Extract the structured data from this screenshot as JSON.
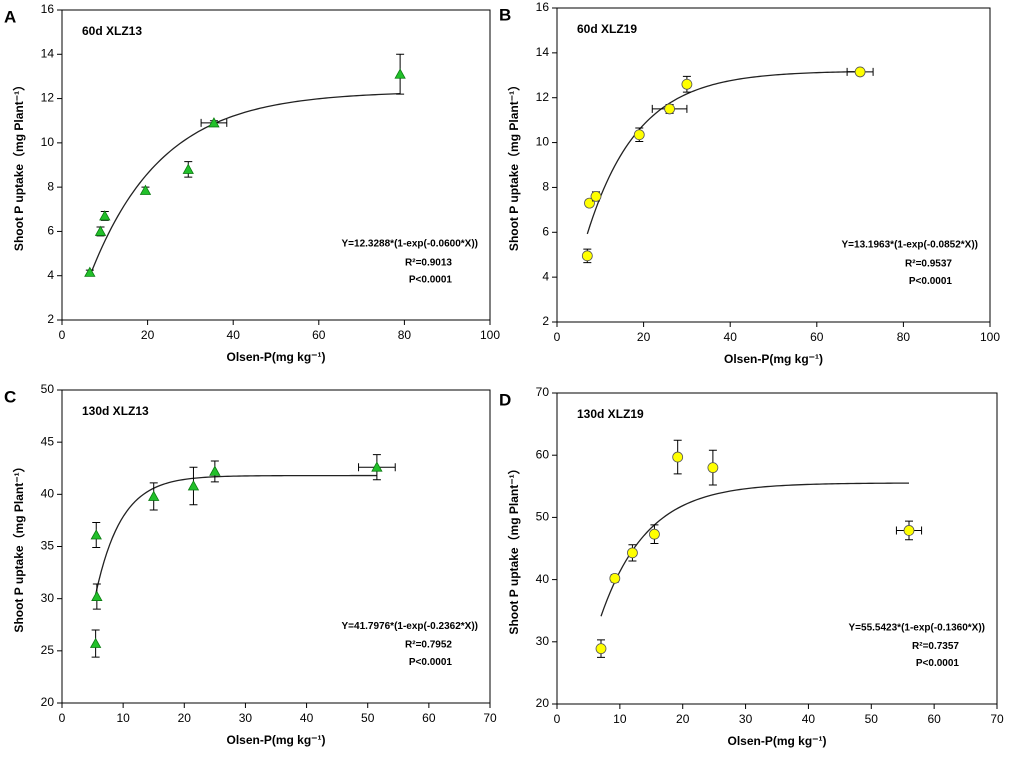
{
  "chart_data": [
    {
      "type": "scatter",
      "panel_label": "A",
      "title": "60d XLZ13",
      "x_label": "Olsen-P(mg kg⁻¹)",
      "y_label": "Shoot P uptake（mg Plant⁻¹）",
      "x": [
        6.5,
        9,
        10,
        19.5,
        29.5,
        35.5,
        79
      ],
      "y": [
        4.15,
        6.0,
        6.7,
        7.85,
        8.8,
        10.9,
        13.1
      ],
      "y_err": [
        0.1,
        0.2,
        0.2,
        0.15,
        0.35,
        0.1,
        0.9
      ],
      "x_err": [
        null,
        null,
        null,
        null,
        null,
        3,
        null
      ],
      "color": "#22c02a",
      "marker": "triangle",
      "xlim": [
        0,
        100
      ],
      "xticks": [
        0,
        20,
        40,
        60,
        80,
        100
      ],
      "ylim": [
        2,
        16
      ],
      "yticks": [
        2,
        4,
        6,
        8,
        10,
        12,
        14,
        16
      ],
      "fit": {
        "equation": "Y=12.3288*(1-exp(-0.0600*X))",
        "a": 12.3288,
        "k": 0.06,
        "r2": "R²=0.9013",
        "p": "P<0.0001"
      }
    },
    {
      "type": "scatter",
      "panel_label": "B",
      "title": "60d XLZ19",
      "x_label": "Olsen-P(mg kg⁻¹)",
      "y_label": "Shoot P uptake（mg Plant⁻¹）",
      "x": [
        7,
        7.5,
        9,
        19,
        26,
        30,
        70
      ],
      "y": [
        4.95,
        7.3,
        7.6,
        10.35,
        11.5,
        12.6,
        13.15
      ],
      "y_err": [
        0.3,
        0.15,
        0.2,
        0.3,
        0.2,
        0.35,
        0.1
      ],
      "x_err": [
        null,
        null,
        null,
        null,
        4,
        null,
        3
      ],
      "color": "#ffff00",
      "marker": "circle",
      "xlim": [
        0,
        100
      ],
      "xticks": [
        0,
        20,
        40,
        60,
        80,
        100
      ],
      "ylim": [
        2,
        16
      ],
      "yticks": [
        2,
        4,
        6,
        8,
        10,
        12,
        14,
        16
      ],
      "fit": {
        "equation": "Y=13.1963*(1-exp(-0.0852*X))",
        "a": 13.1963,
        "k": 0.0852,
        "r2": "R²=0.9537",
        "p": "P<0.0001"
      }
    },
    {
      "type": "scatter",
      "panel_label": "C",
      "title": "130d XLZ13",
      "x_label": "Olsen-P(mg kg⁻¹)",
      "y_label": "Shoot P uptake（mg Plant⁻¹）",
      "x": [
        5.5,
        5.7,
        5.6,
        15,
        21.5,
        25,
        51.5
      ],
      "y": [
        25.7,
        30.2,
        36.1,
        39.8,
        40.8,
        42.2,
        42.6
      ],
      "y_err": [
        1.3,
        1.2,
        1.2,
        1.3,
        1.8,
        1.0,
        1.2
      ],
      "x_err": [
        null,
        null,
        null,
        null,
        null,
        null,
        3
      ],
      "color": "#22c02a",
      "marker": "triangle",
      "xlim": [
        0,
        70
      ],
      "xticks": [
        0,
        10,
        20,
        30,
        40,
        50,
        60,
        70
      ],
      "ylim": [
        20,
        50
      ],
      "yticks": [
        20,
        25,
        30,
        35,
        40,
        45,
        50
      ],
      "fit": {
        "equation": "Y=41.7976*(1-exp(-0.2362*X))",
        "a": 41.7976,
        "k": 0.2362,
        "r2": "R²=0.7952",
        "p": "P<0.0001"
      }
    },
    {
      "type": "scatter",
      "panel_label": "D",
      "title": "130d XLZ19",
      "x_label": "Olsen-P(mg kg⁻¹)",
      "y_label": "Shoot P uptake（mg Plant⁻¹）",
      "x": [
        7,
        9.2,
        12,
        15.5,
        19.2,
        24.8,
        56
      ],
      "y": [
        28.9,
        40.2,
        44.3,
        47.3,
        59.7,
        58,
        47.9
      ],
      "y_err": [
        1.4,
        0.6,
        1.3,
        1.5,
        2.7,
        2.8,
        1.5
      ],
      "x_err": [
        null,
        null,
        null,
        null,
        null,
        null,
        2
      ],
      "color": "#ffff00",
      "marker": "circle",
      "xlim": [
        0,
        70
      ],
      "xticks": [
        0,
        10,
        20,
        30,
        40,
        50,
        60,
        70
      ],
      "ylim": [
        20,
        70
      ],
      "yticks": [
        20,
        30,
        40,
        50,
        60,
        70
      ],
      "fit": {
        "equation": "Y=55.5423*(1-exp(-0.1360*X))",
        "a": 55.5423,
        "k": 0.136,
        "r2": "R²=0.7357",
        "p": "P<0.0001"
      }
    }
  ]
}
